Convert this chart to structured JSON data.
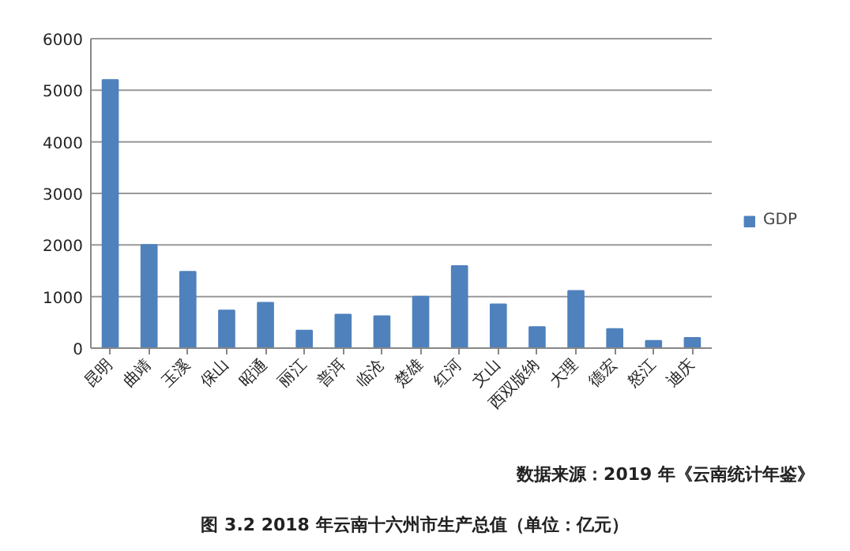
{
  "chart_data": {
    "type": "bar",
    "title": "图 3.2 2018 年云南十六州市生产总值（单位：亿元）",
    "annotations": [
      "数据来源：2019 年《云南统计年鉴》"
    ],
    "categories": [
      "昆明",
      "曲靖",
      "玉溪",
      "保山",
      "昭通",
      "丽江",
      "普洱",
      "临沧",
      "楚雄",
      "红河",
      "文山",
      "西双版纳",
      "大理",
      "德宏",
      "怒江",
      "迪庆"
    ],
    "series": [
      {
        "name": "GDP",
        "color": "#4f81bd",
        "values": [
          5200,
          2000,
          1480,
          730,
          880,
          340,
          650,
          620,
          1000,
          1590,
          850,
          410,
          1110,
          370,
          140,
          200
        ]
      }
    ],
    "ylim": [
      0,
      6000
    ],
    "yticks": [
      0,
      1000,
      2000,
      3000,
      4000,
      5000,
      6000
    ],
    "grid": "y",
    "legend": "right"
  }
}
